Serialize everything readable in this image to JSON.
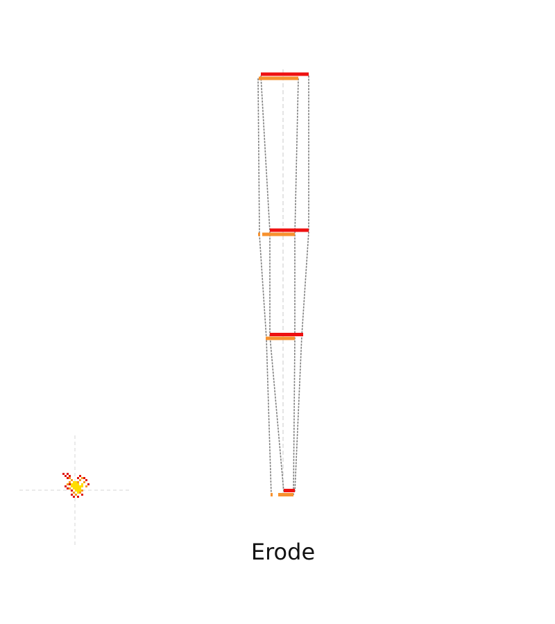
{
  "caption": "Erode",
  "colors": {
    "red_band": "#ee1111",
    "orange_band": "#f7912e",
    "outline": "#808080",
    "axis": "#c8c8c8",
    "glyph_red": "#e0140f",
    "glyph_orange": "#f79a20",
    "glyph_yellow": "#ffdd00"
  },
  "icons": {
    "glyph": "pixel-flame-icon"
  }
}
